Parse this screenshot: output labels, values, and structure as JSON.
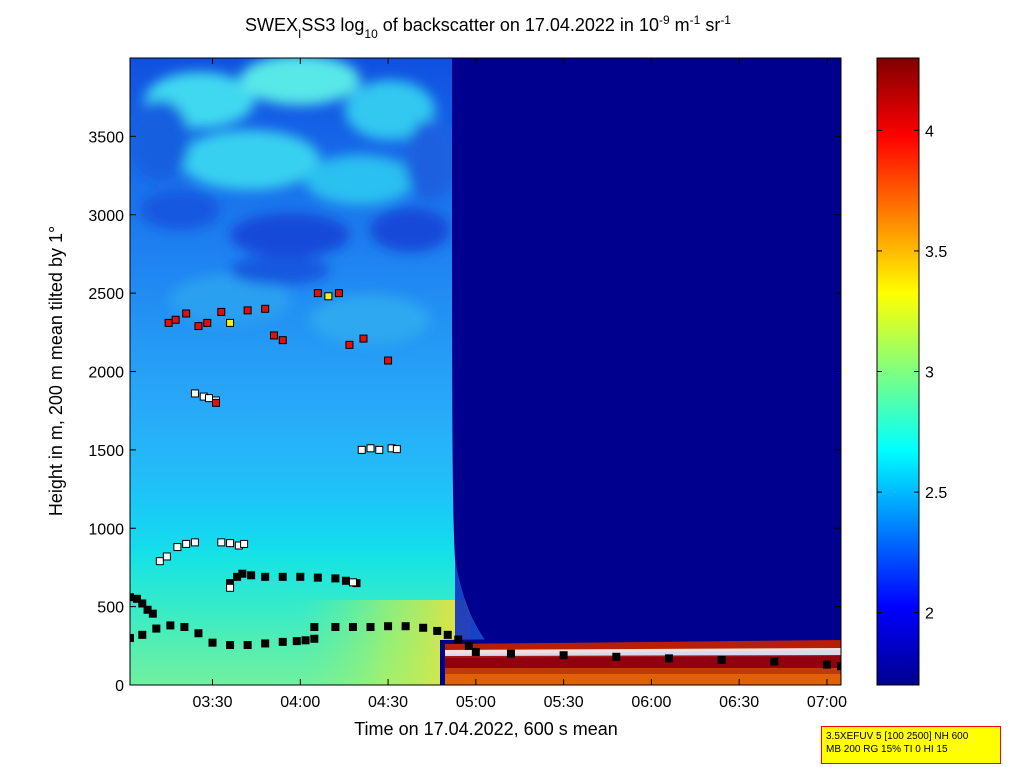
{
  "chart_data": {
    "type": "heatmap",
    "title": {
      "prefix": "SWEX",
      "sub1": "I",
      "mid": "SS3 log",
      "sub2": "10",
      "rest": " of backscatter on 17.04.2022 in 10",
      "sup1": "-9",
      "unit1": " m",
      "sup2": "-1",
      "unit2": " sr",
      "sup3": "-1"
    },
    "xlabel": "Time on 17.04.2022, 600 s mean",
    "ylabel": "Height in m, 200 m mean tilted by 1°",
    "x_ticks": [
      "03:30",
      "04:00",
      "04:30",
      "05:00",
      "05:30",
      "06:00",
      "06:30",
      "07:00"
    ],
    "x_tick_hours": [
      3.5,
      4.0,
      4.5,
      5.0,
      5.5,
      6.0,
      6.5,
      7.0
    ],
    "xlim_hours": [
      3.03,
      7.08
    ],
    "y_ticks": [
      "0",
      "500",
      "1000",
      "1500",
      "2000",
      "2500",
      "3000",
      "3500"
    ],
    "y_tick_values": [
      0,
      500,
      1000,
      1500,
      2000,
      2500,
      3000,
      3500
    ],
    "ylim": [
      0,
      4000
    ],
    "colorbar": {
      "ticks": [
        "2",
        "2.5",
        "3",
        "3.5",
        "4"
      ],
      "tick_values": [
        2,
        2.5,
        3,
        3.5,
        4
      ],
      "range": [
        1.7,
        4.3
      ],
      "colormap": "jet"
    },
    "field_description": {
      "clear_after_hour": 5.0,
      "high_clear_after_hour": 4.97,
      "boundary_layer_top_m": 330
    },
    "series": [
      {
        "marker": "black",
        "points": [
          [
            3.03,
            560
          ],
          [
            3.07,
            550
          ],
          [
            3.1,
            520
          ],
          [
            3.13,
            480
          ],
          [
            3.16,
            455
          ]
        ]
      },
      {
        "marker": "black",
        "points": [
          [
            3.03,
            300
          ],
          [
            3.1,
            320
          ],
          [
            3.18,
            360
          ],
          [
            3.26,
            380
          ],
          [
            3.34,
            370
          ],
          [
            3.42,
            330
          ],
          [
            3.5,
            270
          ],
          [
            3.6,
            255
          ],
          [
            3.7,
            255
          ],
          [
            3.8,
            265
          ],
          [
            3.9,
            275
          ],
          [
            3.98,
            280
          ],
          [
            4.03,
            285
          ],
          [
            4.08,
            295
          ]
        ]
      },
      {
        "marker": "black",
        "points": [
          [
            4.08,
            370
          ],
          [
            4.2,
            370
          ],
          [
            4.3,
            370
          ],
          [
            4.4,
            370
          ],
          [
            4.5,
            375
          ],
          [
            4.6,
            375
          ],
          [
            4.7,
            365
          ],
          [
            4.78,
            345
          ],
          [
            4.84,
            320
          ],
          [
            4.9,
            290
          ],
          [
            4.96,
            250
          ],
          [
            5.0,
            210
          ],
          [
            5.2,
            200
          ],
          [
            5.5,
            190
          ],
          [
            5.8,
            180
          ],
          [
            6.1,
            170
          ],
          [
            6.4,
            160
          ],
          [
            6.7,
            150
          ],
          [
            7.0,
            130
          ],
          [
            7.08,
            120
          ]
        ]
      },
      {
        "marker": "black",
        "points": [
          [
            3.6,
            650
          ],
          [
            3.64,
            690
          ],
          [
            3.67,
            710
          ],
          [
            3.72,
            700
          ],
          [
            3.8,
            690
          ],
          [
            3.9,
            690
          ],
          [
            4.0,
            690
          ],
          [
            4.1,
            685
          ],
          [
            4.2,
            680
          ],
          [
            4.26,
            665
          ],
          [
            4.32,
            650
          ]
        ]
      },
      {
        "marker": "white",
        "points": [
          [
            3.6,
            620
          ],
          [
            4.3,
            655
          ],
          [
            3.2,
            790
          ],
          [
            3.24,
            820
          ],
          [
            3.3,
            880
          ],
          [
            3.35,
            900
          ],
          [
            3.4,
            910
          ],
          [
            3.55,
            910
          ],
          [
            3.6,
            905
          ],
          [
            3.65,
            890
          ],
          [
            3.68,
            900
          ]
        ]
      },
      {
        "marker": "white",
        "points": [
          [
            4.35,
            1500
          ],
          [
            4.4,
            1510
          ],
          [
            4.45,
            1500
          ],
          [
            4.52,
            1510
          ],
          [
            4.55,
            1505
          ]
        ]
      },
      {
        "marker": "white",
        "points": [
          [
            3.4,
            1860
          ],
          [
            3.45,
            1840
          ],
          [
            3.48,
            1830
          ],
          [
            3.52,
            1815
          ]
        ]
      },
      {
        "marker": "red",
        "points": [
          [
            3.25,
            2310
          ],
          [
            3.29,
            2330
          ],
          [
            3.35,
            2370
          ],
          [
            3.42,
            2290
          ],
          [
            3.47,
            2310
          ],
          [
            3.55,
            2380
          ],
          [
            3.7,
            2390
          ],
          [
            3.8,
            2400
          ],
          [
            3.85,
            2230
          ],
          [
            3.9,
            2200
          ],
          [
            4.1,
            2500
          ],
          [
            4.22,
            2500
          ],
          [
            4.28,
            2170
          ],
          [
            4.36,
            2210
          ],
          [
            4.5,
            2070
          ],
          [
            3.52,
            1800
          ]
        ]
      },
      {
        "marker": "yellow",
        "points": [
          [
            4.16,
            2480
          ],
          [
            3.6,
            2310
          ]
        ]
      }
    ]
  },
  "info_box": {
    "line1": "3.5XEFUV 5 [100 2500] NH 600",
    "line2": "MB 200 RG 15% TI 0 HI 15"
  }
}
